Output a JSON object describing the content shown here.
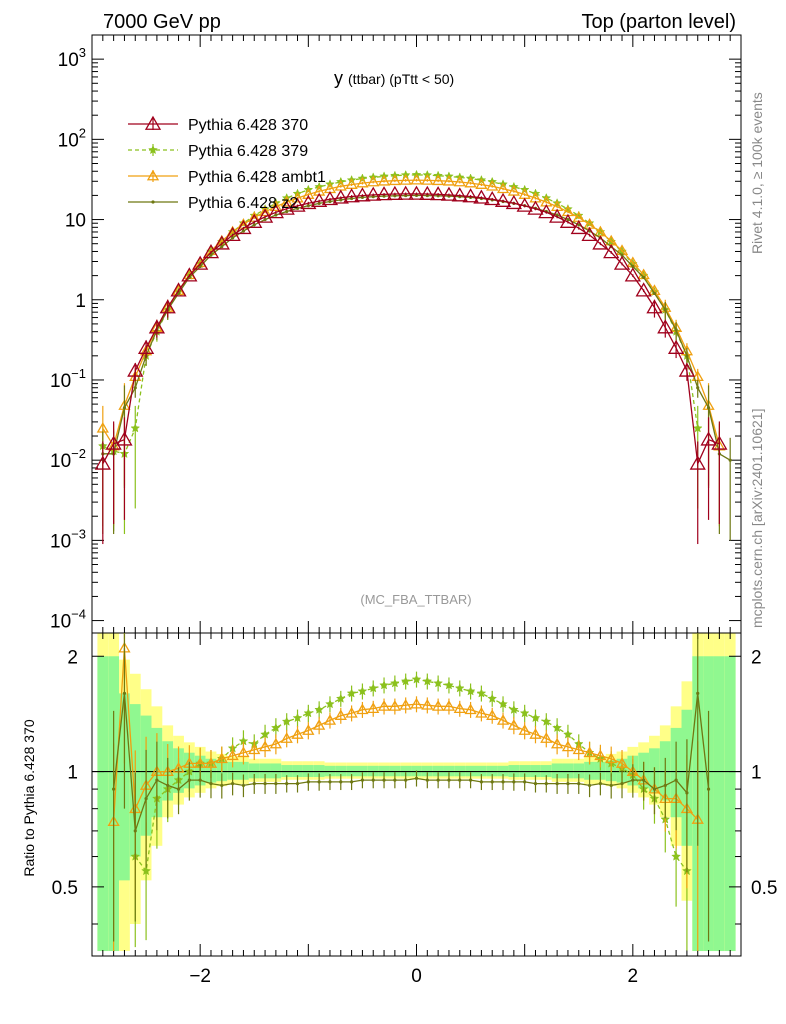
{
  "header": {
    "left": "7000 GeV pp",
    "right": "Top (parton level)"
  },
  "side_labels": {
    "rivet": "Rivet 4.1.0, ≥ 100k events",
    "mcplots": "mcplots.cern.ch [arXiv:2401.10621]"
  },
  "colors": {
    "p370": "#a0001c",
    "p379": "#8bc11d",
    "ambt1": "#f0a010",
    "z2": "#6e7812",
    "band_green": "#90f890",
    "band_yellow": "#ffff88"
  },
  "chart_data": [
    {
      "type": "line",
      "title": "y (ttbar) (pTtt < 50)",
      "title_main": "y",
      "title_sub": "(ttbar) (pTtt < 50)",
      "watermark": "(MC_FBA_TTBAR)",
      "xlim": [
        -3.0,
        3.0
      ],
      "yscale": "log",
      "ylim": [
        7e-05,
        2000
      ],
      "ytick_labels": [
        "10^-4",
        "10^-3",
        "10^-2",
        "10^-1",
        "1",
        "10",
        "10^2",
        "10^3"
      ],
      "legend_position": "top-left",
      "legend": [
        "Pythia 6.428 370",
        "Pythia 6.428 379",
        "Pythia 6.428 ambt1",
        "Pythia 6.428 z2"
      ],
      "x": [
        -2.9,
        -2.8,
        -2.7,
        -2.6,
        -2.5,
        -2.4,
        -2.3,
        -2.2,
        -2.1,
        -2.0,
        -1.9,
        -1.8,
        -1.7,
        -1.6,
        -1.5,
        -1.4,
        -1.3,
        -1.2,
        -1.1,
        -1.0,
        -0.9,
        -0.8,
        -0.7,
        -0.6,
        -0.5,
        -0.4,
        -0.3,
        -0.2,
        -0.1,
        0.0,
        0.1,
        0.2,
        0.3,
        0.4,
        0.5,
        0.6,
        0.7,
        0.8,
        0.9,
        1.0,
        1.1,
        1.2,
        1.3,
        1.4,
        1.5,
        1.6,
        1.7,
        1.8,
        1.9,
        2.0,
        2.1,
        2.2,
        2.3,
        2.4,
        2.5,
        2.6,
        2.7,
        2.8,
        2.9
      ],
      "series": [
        {
          "name": "Pythia 6.428 370",
          "values": [
            0.009,
            0.016,
            0.018,
            0.13,
            0.25,
            0.45,
            0.8,
            1.3,
            2.0,
            2.8,
            3.9,
            5.0,
            6.4,
            7.8,
            9.3,
            10.8,
            12.3,
            13.6,
            14.8,
            16.0,
            17.0,
            17.9,
            18.7,
            19.4,
            19.9,
            20.3,
            20.6,
            20.8,
            20.9,
            20.9,
            20.8,
            20.6,
            20.3,
            19.9,
            19.4,
            18.7,
            17.9,
            17.0,
            16.0,
            14.8,
            13.6,
            12.3,
            10.8,
            9.3,
            7.8,
            6.4,
            5.0,
            3.9,
            2.8,
            2.0,
            1.3,
            0.8,
            0.45,
            0.25,
            0.13,
            0.009,
            0.018,
            0.016,
            null
          ]
        },
        {
          "name": "Pythia 6.428 379",
          "values": [
            0.015,
            0.013,
            0.012,
            0.025,
            0.2,
            0.4,
            0.75,
            1.25,
            2.0,
            2.8,
            4.0,
            5.3,
            7.0,
            9.0,
            11.2,
            13.5,
            16.0,
            18.5,
            21.0,
            23.5,
            25.5,
            27.5,
            29.5,
            31.0,
            32.5,
            33.5,
            34.5,
            35.2,
            35.8,
            36.0,
            35.8,
            35.2,
            34.5,
            33.5,
            32.5,
            31.0,
            29.5,
            27.5,
            25.5,
            23.5,
            21.0,
            18.5,
            16.0,
            13.5,
            11.2,
            9.0,
            7.0,
            5.3,
            4.0,
            2.8,
            2.0,
            1.25,
            0.75,
            0.4,
            0.2,
            0.025,
            null,
            null,
            null
          ]
        },
        {
          "name": "Pythia 6.428 ambt1",
          "values": [
            0.025,
            0.015,
            0.048,
            0.11,
            0.23,
            0.45,
            0.8,
            1.3,
            2.05,
            2.9,
            4.1,
            5.4,
            7.0,
            8.7,
            10.6,
            12.5,
            14.5,
            16.5,
            18.5,
            20.5,
            22.5,
            24.2,
            26.0,
            27.3,
            28.5,
            29.4,
            30.1,
            30.5,
            30.8,
            31.0,
            30.8,
            30.5,
            30.1,
            29.4,
            28.5,
            27.3,
            26.0,
            24.2,
            22.5,
            20.5,
            18.5,
            16.5,
            14.5,
            12.5,
            10.6,
            8.7,
            7.0,
            5.4,
            4.1,
            2.9,
            2.05,
            1.3,
            0.8,
            0.45,
            0.23,
            0.11,
            0.048,
            0.015,
            null
          ]
        },
        {
          "name": "Pythia 6.428 z2",
          "values": [
            0.012,
            0.012,
            0.045,
            0.08,
            0.2,
            0.42,
            0.75,
            1.2,
            1.9,
            2.6,
            3.6,
            4.6,
            5.9,
            7.2,
            8.6,
            10.0,
            11.4,
            12.6,
            13.8,
            14.9,
            15.9,
            16.8,
            17.6,
            18.3,
            18.9,
            19.3,
            19.6,
            19.8,
            19.9,
            20.0,
            19.9,
            19.8,
            19.6,
            19.3,
            18.9,
            18.3,
            17.6,
            16.8,
            15.9,
            14.9,
            13.8,
            12.6,
            11.4,
            10.0,
            8.6,
            7.2,
            5.9,
            4.6,
            3.6,
            2.6,
            1.9,
            1.2,
            0.75,
            0.42,
            0.2,
            0.08,
            0.045,
            0.012,
            0.01
          ]
        }
      ]
    },
    {
      "type": "line",
      "title": "Ratio to Pythia 6.428 370",
      "ylabel": "Ratio to Pythia 6.428 370",
      "xlim": [
        -3.0,
        3.0
      ],
      "ylim": [
        0.33,
        2.3
      ],
      "yscale": "log",
      "xtick_labels": [
        "−2",
        "0",
        "2"
      ],
      "ytick_labels": [
        "0.5",
        "1",
        "2"
      ],
      "x": [
        -2.9,
        -2.8,
        -2.7,
        -2.6,
        -2.5,
        -2.4,
        -2.3,
        -2.2,
        -2.1,
        -2.0,
        -1.9,
        -1.8,
        -1.7,
        -1.6,
        -1.5,
        -1.4,
        -1.3,
        -1.2,
        -1.1,
        -1.0,
        -0.9,
        -0.8,
        -0.7,
        -0.6,
        -0.5,
        -0.4,
        -0.3,
        -0.2,
        -0.1,
        0.0,
        0.1,
        0.2,
        0.3,
        0.4,
        0.5,
        0.6,
        0.7,
        0.8,
        0.9,
        1.0,
        1.1,
        1.2,
        1.3,
        1.4,
        1.5,
        1.6,
        1.7,
        1.8,
        1.9,
        2.0,
        2.1,
        2.2,
        2.3,
        2.4,
        2.5,
        2.6,
        2.7,
        2.8,
        2.9
      ],
      "band_rel_err": [
        1.0,
        1.0,
        0.6,
        0.5,
        0.4,
        0.3,
        0.2,
        0.15,
        0.12,
        0.1,
        0.08,
        0.07,
        0.06,
        0.06,
        0.05,
        0.05,
        0.05,
        0.04,
        0.04,
        0.04,
        0.04,
        0.035,
        0.035,
        0.035,
        0.035,
        0.035,
        0.035,
        0.035,
        0.035,
        0.035,
        0.035,
        0.035,
        0.035,
        0.035,
        0.035,
        0.035,
        0.035,
        0.035,
        0.04,
        0.04,
        0.04,
        0.04,
        0.05,
        0.05,
        0.05,
        0.06,
        0.06,
        0.07,
        0.08,
        0.1,
        0.12,
        0.15,
        0.2,
        0.3,
        0.45,
        1.0,
        1.0,
        1.0,
        1.0
      ],
      "series": [
        {
          "name": "Pythia 6.428 379",
          "values": [
            null,
            null,
            null,
            0.6,
            0.55,
            0.85,
            0.9,
            0.95,
            1.0,
            1.05,
            1.05,
            1.08,
            1.15,
            1.2,
            1.18,
            1.25,
            1.3,
            1.35,
            1.38,
            1.42,
            1.45,
            1.5,
            1.55,
            1.6,
            1.62,
            1.65,
            1.68,
            1.7,
            1.72,
            1.74,
            1.72,
            1.7,
            1.68,
            1.65,
            1.62,
            1.6,
            1.55,
            1.5,
            1.45,
            1.42,
            1.38,
            1.35,
            1.3,
            1.25,
            1.18,
            1.12,
            1.08,
            1.05,
            1.02,
            0.98,
            0.9,
            0.85,
            0.75,
            0.6,
            0.55,
            null,
            null,
            null,
            null
          ]
        },
        {
          "name": "Pythia 6.428 ambt1",
          "values": [
            null,
            0.74,
            2.1,
            0.8,
            0.92,
            1.0,
            1.0,
            1.02,
            1.05,
            1.05,
            1.05,
            1.08,
            1.1,
            1.12,
            1.14,
            1.16,
            1.18,
            1.22,
            1.25,
            1.28,
            1.32,
            1.36,
            1.4,
            1.42,
            1.45,
            1.46,
            1.48,
            1.48,
            1.49,
            1.5,
            1.49,
            1.48,
            1.48,
            1.46,
            1.45,
            1.42,
            1.4,
            1.36,
            1.32,
            1.28,
            1.25,
            1.22,
            1.18,
            1.16,
            1.14,
            1.12,
            1.1,
            1.08,
            1.05,
            1.0,
            0.95,
            0.9,
            0.85,
            0.85,
            0.8,
            0.75,
            null,
            null,
            null
          ]
        },
        {
          "name": "Pythia 6.428 z2",
          "values": [
            null,
            0.9,
            1.6,
            0.7,
            0.85,
            0.95,
            0.92,
            0.9,
            0.95,
            0.95,
            0.93,
            0.92,
            0.93,
            0.92,
            0.93,
            0.93,
            0.93,
            0.93,
            0.93,
            0.94,
            0.94,
            0.94,
            0.94,
            0.94,
            0.95,
            0.95,
            0.95,
            0.95,
            0.95,
            0.96,
            0.95,
            0.95,
            0.95,
            0.95,
            0.95,
            0.94,
            0.94,
            0.94,
            0.94,
            0.94,
            0.93,
            0.93,
            0.93,
            0.93,
            0.93,
            0.92,
            0.93,
            0.92,
            0.93,
            0.95,
            0.95,
            0.9,
            0.92,
            0.95,
            0.88,
            1.6,
            0.9,
            null,
            null
          ]
        }
      ]
    }
  ]
}
